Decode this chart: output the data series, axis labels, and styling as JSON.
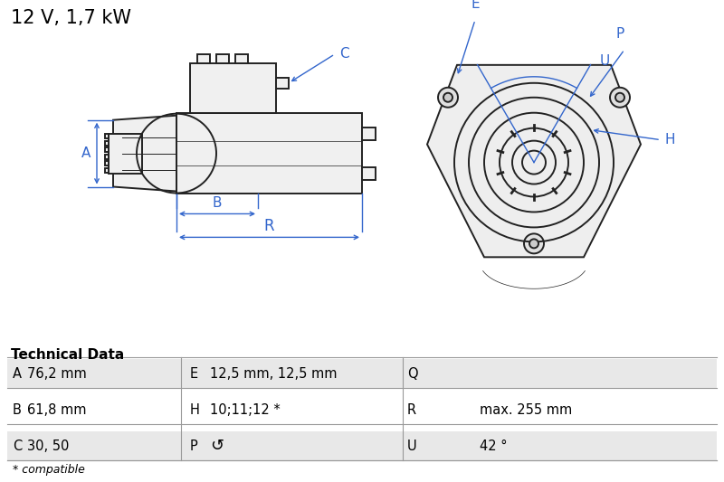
{
  "title": "12 V, 1,7 kW",
  "title_fontsize": 15,
  "diagram_color": "#3366cc",
  "part_color": "#222222",
  "bg_color": "#ffffff",
  "table_header": "Technical Data",
  "table_rows": [
    [
      "A",
      "76,2 mm",
      "E",
      "12,5 mm, 12,5 mm",
      "Q",
      ""
    ],
    [
      "B",
      "61,8 mm",
      "H",
      "10;11;12 *",
      "R",
      "max. 255 mm"
    ],
    [
      "C",
      "30, 50",
      "P",
      "↺",
      "U",
      "42 °"
    ]
  ],
  "footnote": "* compatible"
}
